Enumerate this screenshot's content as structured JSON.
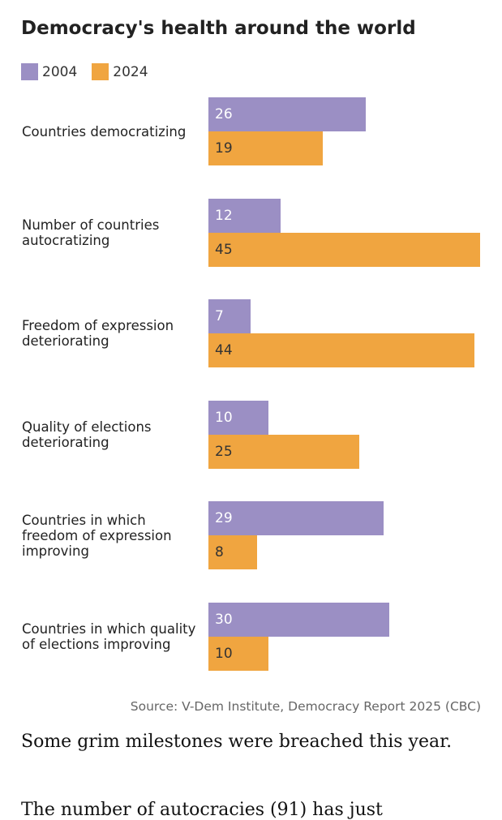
{
  "chart_data": {
    "type": "bar",
    "orientation": "horizontal",
    "title": "Democracy's health around the world",
    "categories": [
      "Countries democratizing",
      "Number of countries autocratizing",
      "Freedom of expression deteriorating",
      "Quality of elections deteriorating",
      "Countries in which freedom of expression improving",
      "Countries in which quality of elections improving"
    ],
    "series": [
      {
        "name": "2004",
        "color": "#9b8fc4",
        "values": [
          26,
          12,
          7,
          10,
          29,
          30
        ]
      },
      {
        "name": "2024",
        "color": "#f0a540",
        "values": [
          19,
          45,
          44,
          25,
          8,
          10
        ]
      }
    ],
    "xlim": [
      0,
      45
    ],
    "xlabel": "",
    "ylabel": "",
    "legend": "top-left",
    "grid": false
  },
  "source": "Source: V-Dem Institute, Democracy Report 2025 (CBC)",
  "article": {
    "paragraph1": "Some grim milestones were breached this year.",
    "paragraph2": "The number of autocracies (91) has just"
  }
}
